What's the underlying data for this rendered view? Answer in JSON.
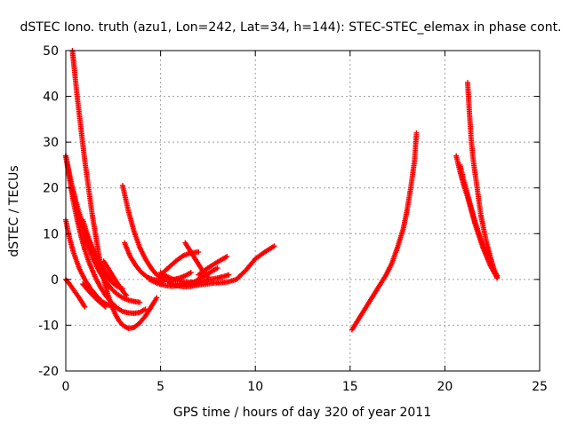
{
  "chart_data": {
    "type": "scatter",
    "title": "dSTEC Iono. truth (azu1, Lon=242, Lat=34, h=144): STEC-STEC_elemax in phase cont.",
    "xlabel": "GPS time / hours of day 320 of year 2011",
    "ylabel": "dSTEC  / TECUs",
    "xlim": [
      0,
      25
    ],
    "ylim": [
      -20,
      50
    ],
    "xticks": [
      "0",
      "5",
      "10",
      "15",
      "20",
      "25"
    ],
    "yticks": [
      "-20",
      "-10",
      "0",
      "10",
      "20",
      "30",
      "40",
      "50"
    ],
    "grid": true,
    "marker": "+",
    "color": "#ff0000",
    "series": [
      {
        "x": [
          0.35,
          0.45,
          0.6,
          0.8,
          1.0,
          1.2,
          1.4,
          1.6,
          1.8,
          2.0,
          2.2,
          2.4,
          2.6,
          2.8,
          3.0,
          3.3,
          3.6,
          3.9,
          4.2,
          4.5,
          4.8
        ],
        "y": [
          50,
          46,
          40,
          33,
          26,
          20,
          14,
          9,
          4,
          0,
          -3,
          -5.5,
          -7.5,
          -9,
          -10,
          -10.7,
          -10.5,
          -9.5,
          -8,
          -6,
          -4
        ]
      },
      {
        "x": [
          0.0,
          0.2,
          0.4,
          0.6,
          0.8,
          1.0,
          1.2,
          1.5,
          1.8,
          2.1,
          2.4,
          2.7,
          3.0,
          3.3,
          3.6,
          3.9,
          4.2
        ],
        "y": [
          27,
          22,
          17,
          13,
          9.5,
          6.5,
          4,
          1,
          -1.5,
          -3.5,
          -5,
          -6.2,
          -7,
          -7.3,
          -7.4,
          -7.2,
          -6.5
        ]
      },
      {
        "x": [
          0.0,
          0.2,
          0.4,
          0.7,
          1.0,
          1.3,
          1.6,
          1.9,
          2.2,
          2.5
        ],
        "y": [
          13,
          9,
          6,
          2.5,
          0,
          -2,
          -3.5,
          -4.8,
          -5.5,
          -6
        ]
      },
      {
        "x": [
          0.0,
          0.3,
          0.6,
          0.9,
          1.2,
          1.5,
          1.8,
          2.1,
          2.4,
          2.7,
          3.0
        ],
        "y": [
          27,
          21,
          16,
          12,
          8.5,
          5.5,
          3,
          1,
          -0.5,
          -1.5,
          -2
        ]
      },
      {
        "x": [
          0.3,
          0.6,
          0.9,
          1.2,
          1.5,
          1.8,
          2.1,
          2.4,
          2.7,
          3.0,
          3.3,
          3.6,
          3.9
        ],
        "y": [
          20,
          15,
          10.5,
          7,
          4,
          1.5,
          -0.5,
          -2,
          -3.2,
          -4,
          -4.5,
          -4.8,
          -5
        ]
      },
      {
        "x": [
          0.0,
          0.2,
          0.4,
          0.6,
          0.8,
          1.0
        ],
        "y": [
          0,
          -1,
          -2.2,
          -3.4,
          -4.6,
          -6
        ]
      },
      {
        "x": [
          0.9,
          1.2,
          1.5,
          1.8,
          2.1,
          2.4
        ],
        "y": [
          13,
          9,
          6,
          3.5,
          1.5,
          0
        ]
      },
      {
        "x": [
          0.9,
          1.2,
          1.5,
          1.8,
          2.1
        ],
        "y": [
          -1,
          -2.5,
          -3.8,
          -5,
          -6
        ]
      },
      {
        "x": [
          2.0,
          2.3,
          2.6,
          2.9,
          3.2
        ],
        "y": [
          4,
          2,
          0,
          -2,
          -3.5
        ]
      },
      {
        "x": [
          3.0,
          3.3,
          3.6,
          3.9,
          4.2,
          4.5,
          4.8,
          5.1,
          5.4,
          5.7,
          6.0,
          6.3,
          6.6
        ],
        "y": [
          20.5,
          15,
          10.5,
          7,
          4.5,
          2.5,
          1,
          0.2,
          0,
          0,
          0.3,
          0.8,
          1.5
        ]
      },
      {
        "x": [
          3.1,
          3.4,
          3.7,
          4.0,
          4.3,
          4.6,
          4.9,
          5.2
        ],
        "y": [
          8,
          5,
          3,
          1.5,
          0.5,
          0,
          -0.3,
          -0.5
        ]
      },
      {
        "x": [
          4.4,
          4.8,
          5.2,
          5.6,
          6.0,
          6.4,
          6.8,
          7.2,
          7.6,
          8.0,
          8.3,
          8.6
        ],
        "y": [
          0,
          -0.8,
          -1.3,
          -1.5,
          -1.3,
          -1,
          -0.6,
          -0.3,
          0,
          0.3,
          0.6,
          1
        ]
      },
      {
        "x": [
          5.0,
          5.4,
          5.8,
          6.2,
          6.6,
          7.0
        ],
        "y": [
          1.5,
          0.5,
          -0.2,
          -0.5,
          -0.6,
          -0.7
        ]
      },
      {
        "x": [
          5.4,
          5.8,
          6.2,
          6.6,
          7.0,
          7.4,
          7.8,
          8.2,
          8.6,
          9.0,
          9.5,
          10.0,
          10.5,
          11.0
        ],
        "y": [
          -0.5,
          -1.3,
          -1.6,
          -1.5,
          -1.2,
          -1,
          -0.8,
          -0.7,
          -0.5,
          0,
          2,
          4.5,
          6,
          7.3
        ]
      },
      {
        "x": [
          5.0,
          5.4,
          5.8,
          6.2,
          6.6,
          7.0
        ],
        "y": [
          1,
          2.5,
          4,
          5.2,
          5.8,
          6
        ]
      },
      {
        "x": [
          6.3,
          6.6,
          6.9,
          7.2,
          7.5
        ],
        "y": [
          8,
          6,
          4,
          2,
          0.5
        ]
      },
      {
        "x": [
          7.0,
          7.5,
          8.0,
          8.5
        ],
        "y": [
          1,
          2.5,
          3.8,
          5
        ]
      },
      {
        "x": [
          6.8,
          7.2,
          7.6,
          8.0
        ],
        "y": [
          -0.5,
          0.5,
          1.5,
          2.5
        ]
      },
      {
        "x": [
          15.1,
          15.4,
          15.7,
          16.0,
          16.3,
          16.6,
          16.9,
          17.2,
          17.5,
          17.8,
          18.0,
          18.2,
          18.4,
          18.5
        ],
        "y": [
          -11,
          -9,
          -7,
          -5,
          -3,
          -1,
          1,
          3.5,
          7,
          11,
          15,
          20,
          26,
          32
        ]
      },
      {
        "x": [
          20.6,
          20.8,
          21.0,
          21.2,
          21.4,
          21.6,
          21.8,
          22.0,
          22.2,
          22.4,
          22.6,
          22.75
        ],
        "y": [
          27,
          23.5,
          20.5,
          18,
          15,
          12,
          9.5,
          7,
          5,
          3,
          1.5,
          0.5
        ]
      },
      {
        "x": [
          20.8,
          21.0,
          21.2,
          21.4,
          21.6,
          21.8,
          22.0,
          22.2,
          22.4,
          22.6,
          22.75
        ],
        "y": [
          25,
          21.5,
          18.5,
          15.5,
          12.5,
          10,
          7.5,
          5.5,
          3.5,
          2,
          0.8
        ]
      },
      {
        "x": [
          21.2,
          21.3,
          21.4,
          21.5,
          21.6,
          21.7,
          21.8,
          21.9,
          22.0,
          22.2,
          22.4,
          22.6,
          22.75
        ],
        "y": [
          43,
          36,
          30,
          26,
          23,
          20,
          17,
          14,
          12,
          8,
          5,
          2,
          0.3
        ]
      }
    ]
  }
}
